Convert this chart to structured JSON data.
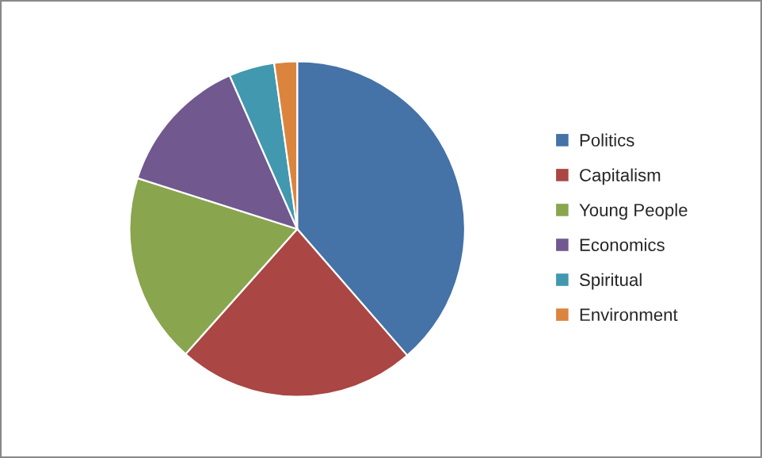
{
  "chart_data": {
    "type": "pie",
    "categories": [
      "Politics",
      "Capitalism",
      "Young People",
      "Economics",
      "Spiritual",
      "Environment"
    ],
    "values": [
      38.6,
      23,
      18.3,
      13.5,
      4.4,
      2.2
    ],
    "colors": [
      "#4572a7",
      "#aa4643",
      "#89a54e",
      "#71588f",
      "#4198af",
      "#db843d"
    ],
    "legend": "right"
  }
}
